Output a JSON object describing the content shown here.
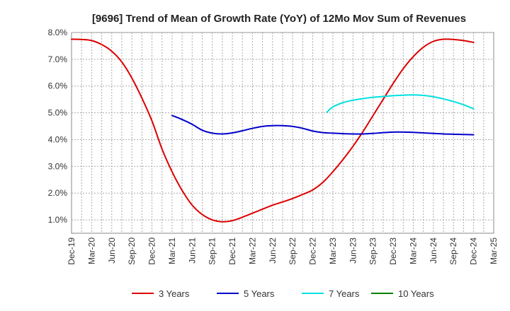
{
  "chart_data": {
    "type": "line",
    "title": "[9696]  Trend of Mean of Growth Rate (YoY) of 12Mo Mov Sum of Revenues",
    "xlabel": "",
    "ylabel": "",
    "ylim": [
      0.5,
      8.0
    ],
    "y_ticks": [
      "1.0%",
      "2.0%",
      "3.0%",
      "4.0%",
      "5.0%",
      "6.0%",
      "7.0%",
      "8.0%"
    ],
    "y_tick_values": [
      1,
      2,
      3,
      4,
      5,
      6,
      7,
      8
    ],
    "x_ticks": [
      "Dec-19",
      "Mar-20",
      "Jun-20",
      "Sep-20",
      "Dec-20",
      "Mar-21",
      "Jun-21",
      "Sep-21",
      "Dec-21",
      "Mar-22",
      "Jun-22",
      "Sep-22",
      "Dec-22",
      "Mar-23",
      "Jun-23",
      "Sep-23",
      "Dec-23",
      "Mar-24",
      "Jun-24",
      "Sep-24",
      "Dec-24",
      "Mar-25"
    ],
    "x_range": [
      0,
      21
    ],
    "grid": true,
    "legend_position": "bottom",
    "series": [
      {
        "name": "3 Years",
        "color": "#dd0000",
        "points": [
          [
            0,
            7.75
          ],
          [
            0.5,
            7.74
          ],
          [
            1,
            7.7
          ],
          [
            1.5,
            7.55
          ],
          [
            2,
            7.3
          ],
          [
            2.5,
            6.9
          ],
          [
            3,
            6.3
          ],
          [
            3.5,
            5.55
          ],
          [
            4,
            4.7
          ],
          [
            4.5,
            3.65
          ],
          [
            5,
            2.8
          ],
          [
            5.5,
            2.1
          ],
          [
            6,
            1.55
          ],
          [
            6.5,
            1.2
          ],
          [
            7,
            1.0
          ],
          [
            7.5,
            0.93
          ],
          [
            8,
            0.97
          ],
          [
            8.5,
            1.1
          ],
          [
            9,
            1.25
          ],
          [
            9.5,
            1.4
          ],
          [
            10,
            1.55
          ],
          [
            10.5,
            1.67
          ],
          [
            11,
            1.8
          ],
          [
            11.5,
            1.95
          ],
          [
            12,
            2.12
          ],
          [
            12.5,
            2.4
          ],
          [
            13,
            2.8
          ],
          [
            13.5,
            3.25
          ],
          [
            14,
            3.75
          ],
          [
            14.5,
            4.3
          ],
          [
            15,
            4.9
          ],
          [
            15.5,
            5.5
          ],
          [
            16,
            6.1
          ],
          [
            16.5,
            6.65
          ],
          [
            17,
            7.1
          ],
          [
            17.5,
            7.45
          ],
          [
            18,
            7.67
          ],
          [
            18.5,
            7.75
          ],
          [
            19,
            7.74
          ],
          [
            19.5,
            7.7
          ],
          [
            20,
            7.63
          ]
        ]
      },
      {
        "name": "5 Years",
        "color": "#0000cc",
        "points": [
          [
            5,
            4.9
          ],
          [
            5.5,
            4.75
          ],
          [
            6,
            4.57
          ],
          [
            6.5,
            4.35
          ],
          [
            7,
            4.24
          ],
          [
            7.5,
            4.21
          ],
          [
            8,
            4.25
          ],
          [
            8.5,
            4.33
          ],
          [
            9,
            4.42
          ],
          [
            9.5,
            4.49
          ],
          [
            10,
            4.52
          ],
          [
            10.5,
            4.52
          ],
          [
            11,
            4.49
          ],
          [
            11.5,
            4.42
          ],
          [
            12,
            4.32
          ],
          [
            12.5,
            4.26
          ],
          [
            13,
            4.24
          ],
          [
            13.5,
            4.22
          ],
          [
            14,
            4.21
          ],
          [
            14.5,
            4.21
          ],
          [
            15,
            4.23
          ],
          [
            15.5,
            4.26
          ],
          [
            16,
            4.28
          ],
          [
            16.5,
            4.28
          ],
          [
            17,
            4.27
          ],
          [
            17.5,
            4.25
          ],
          [
            18,
            4.23
          ],
          [
            18.5,
            4.21
          ],
          [
            19,
            4.2
          ],
          [
            19.5,
            4.19
          ],
          [
            20,
            4.18
          ]
        ]
      },
      {
        "name": "7 Years",
        "color": "#00e0e0",
        "points": [
          [
            12.7,
            5.02
          ],
          [
            13,
            5.22
          ],
          [
            13.5,
            5.38
          ],
          [
            14,
            5.47
          ],
          [
            14.5,
            5.53
          ],
          [
            15,
            5.58
          ],
          [
            15.5,
            5.61
          ],
          [
            16,
            5.64
          ],
          [
            16.5,
            5.66
          ],
          [
            17,
            5.67
          ],
          [
            17.5,
            5.65
          ],
          [
            18,
            5.6
          ],
          [
            18.5,
            5.52
          ],
          [
            19,
            5.42
          ],
          [
            19.5,
            5.3
          ],
          [
            20,
            5.15
          ]
        ]
      },
      {
        "name": "10 Years",
        "color": "#008000",
        "points": []
      }
    ]
  }
}
